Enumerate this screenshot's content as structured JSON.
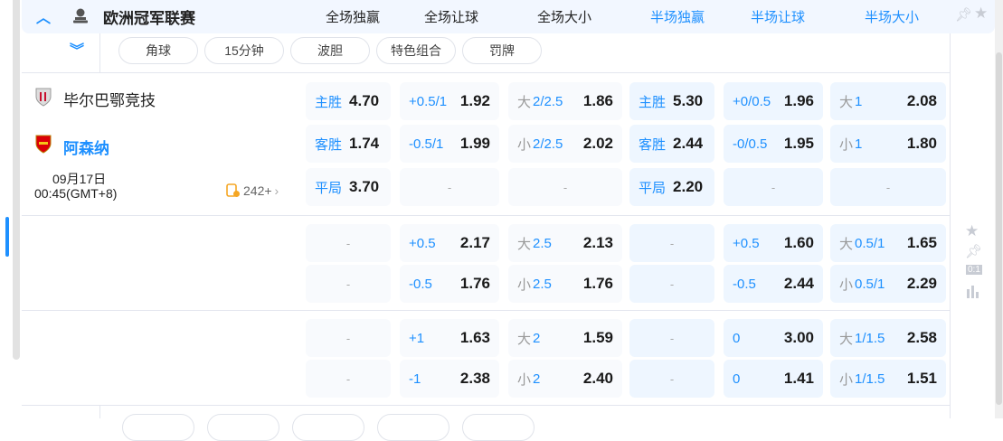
{
  "league": {
    "title": "欧洲冠军联赛",
    "columns": [
      "全场独赢",
      "全场让球",
      "全场大小",
      "半场独赢",
      "半场让球",
      "半场大小"
    ]
  },
  "filters": [
    "角球",
    "15分钟",
    "波胆",
    "特色组合",
    "罚牌"
  ],
  "match": {
    "home": "毕尔巴鄂竞技",
    "away": "阿森纳",
    "date": "09月17日",
    "time": "00:45(GMT+8)",
    "more_count": "242+"
  },
  "main_rows": [
    [
      {
        "l": "主胜",
        "o": "4.70"
      },
      {
        "l": "+0.5/1",
        "o": "1.92"
      },
      {
        "p": "大",
        "l": "2/2.5",
        "o": "1.86"
      },
      {
        "l": "主胜",
        "o": "5.30"
      },
      {
        "l": "+0/0.5",
        "o": "1.96"
      },
      {
        "p": "大",
        "l": "1",
        "o": "2.08"
      }
    ],
    [
      {
        "l": "客胜",
        "o": "1.74"
      },
      {
        "l": "-0.5/1",
        "o": "1.99"
      },
      {
        "p": "小",
        "l": "2/2.5",
        "o": "2.02"
      },
      {
        "l": "客胜",
        "o": "2.44"
      },
      {
        "l": "-0/0.5",
        "o": "1.95"
      },
      {
        "p": "小",
        "l": "1",
        "o": "1.80"
      }
    ],
    [
      {
        "l": "平局",
        "o": "3.70"
      },
      {
        "d": "-"
      },
      {
        "d": "-"
      },
      {
        "l": "平局",
        "o": "2.20"
      },
      {
        "d": "-"
      },
      {
        "d": "-"
      }
    ]
  ],
  "alt_lines": [
    [
      [
        {
          "d": "-"
        },
        {
          "l": "+0.5",
          "o": "2.17"
        },
        {
          "p": "大",
          "l": "2.5",
          "o": "2.13"
        },
        {
          "d": "-"
        },
        {
          "l": "+0.5",
          "o": "1.60"
        },
        {
          "p": "大",
          "l": "0.5/1",
          "o": "1.65"
        }
      ],
      [
        {
          "d": "-"
        },
        {
          "l": "-0.5",
          "o": "1.76"
        },
        {
          "p": "小",
          "l": "2.5",
          "o": "1.76"
        },
        {
          "d": "-"
        },
        {
          "l": "-0.5",
          "o": "2.44"
        },
        {
          "p": "小",
          "l": "0.5/1",
          "o": "2.29"
        }
      ]
    ],
    [
      [
        {
          "d": "-"
        },
        {
          "l": "+1",
          "o": "1.63"
        },
        {
          "p": "大",
          "l": "2",
          "o": "1.59"
        },
        {
          "d": "-"
        },
        {
          "l": "0",
          "o": "3.00"
        },
        {
          "p": "大",
          "l": "1/1.5",
          "o": "2.58"
        }
      ],
      [
        {
          "d": "-"
        },
        {
          "l": "-1",
          "o": "2.38"
        },
        {
          "p": "小",
          "l": "2",
          "o": "2.40"
        },
        {
          "d": "-"
        },
        {
          "l": "0",
          "o": "1.41"
        },
        {
          "p": "小",
          "l": "1/1.5",
          "o": "1.51"
        }
      ]
    ]
  ],
  "colors": {
    "accent": "#1e90ff",
    "header_bg": "#f2f7ff",
    "halftime_cell_bg": "#eef6ff",
    "fulltime_cell_bg": "#f8fafd",
    "more_icon": "#f5a623"
  }
}
